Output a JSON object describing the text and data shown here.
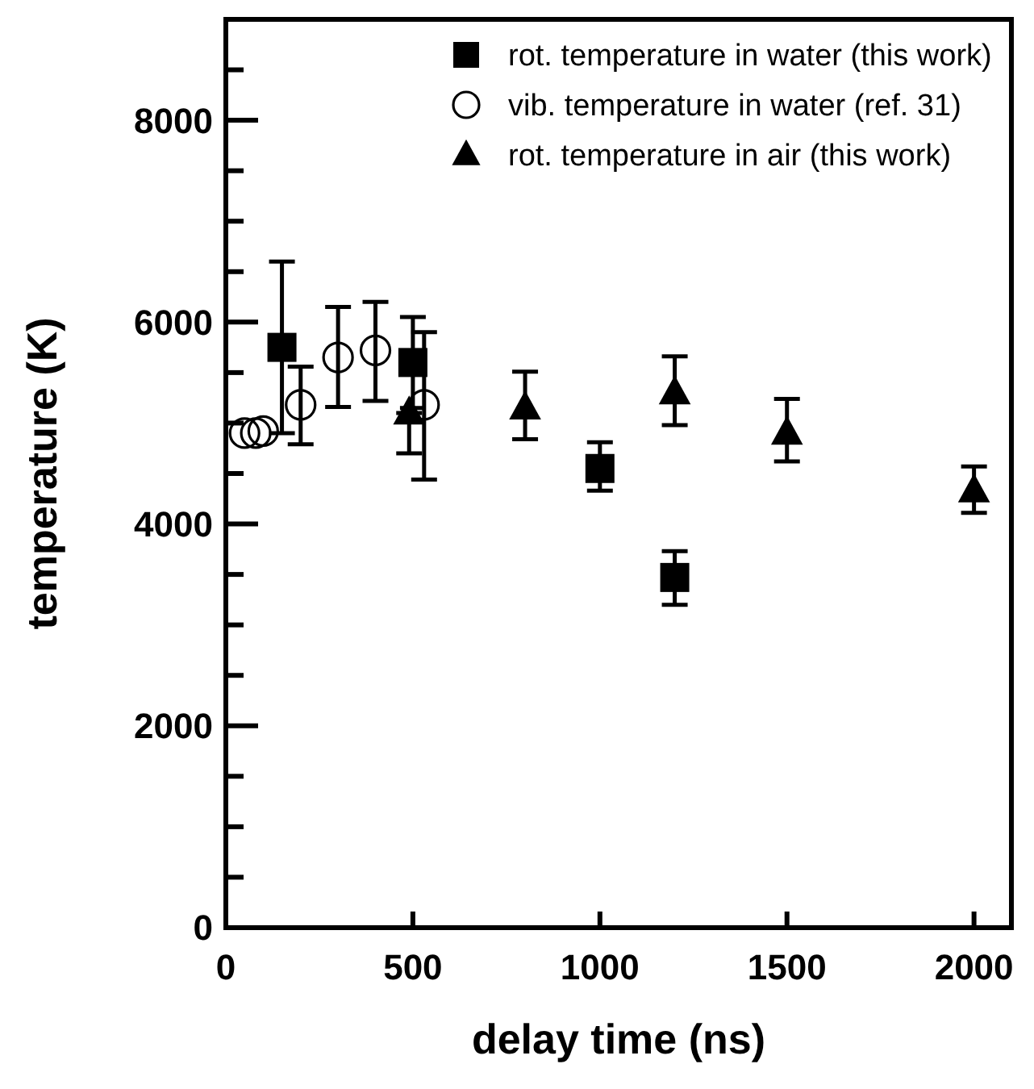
{
  "chart_data": {
    "type": "scatter",
    "xlabel": "delay time (ns)",
    "ylabel": "temperature (K)",
    "xlim": [
      0,
      2100
    ],
    "xticks": [
      0,
      500,
      1000,
      1500,
      2000
    ],
    "ylim": [
      0,
      9000
    ],
    "yticks": [
      0,
      {
        "value": 500,
        "label": null
      },
      {
        "value": 1000,
        "label": null
      },
      {
        "value": 1500,
        "label": null
      },
      2000,
      {
        "value": 2500,
        "label": null
      },
      {
        "value": 3000,
        "label": null
      },
      {
        "value": 3500,
        "label": null
      },
      4000,
      {
        "value": 4500,
        "label": null
      },
      {
        "value": 5000,
        "label": null
      },
      {
        "value": 5500,
        "label": null
      },
      6000,
      {
        "value": 6500,
        "label": null
      },
      {
        "value": 7000,
        "label": null
      },
      {
        "value": 7500,
        "label": null
      },
      8000,
      {
        "value": 8500,
        "label": null
      }
    ],
    "legend": "top right",
    "grid": false,
    "series": [
      {
        "name": "rot. temperature in water (this work)",
        "color": "#000000",
        "marker": "square",
        "x": [
          150,
          500,
          1000,
          1200
        ],
        "values": [
          5750,
          5600,
          4550,
          3470
        ],
        "errors": [
          [
            4900,
            6600
          ],
          [
            5150,
            6050
          ],
          [
            4330,
            4810
          ],
          [
            3200,
            3730
          ]
        ]
      },
      {
        "name": "vib. temperature in water (ref. 31)",
        "color": "#000000",
        "marker": "circle",
        "x": [
          50,
          80,
          100,
          200,
          300,
          400,
          530
        ],
        "values": [
          4900,
          4900,
          4920,
          5180,
          5650,
          5720,
          5180
        ],
        "errors": [
          null,
          null,
          null,
          [
            4790,
            5560
          ],
          [
            5160,
            6150
          ],
          [
            5220,
            6200
          ],
          [
            4440,
            5900
          ]
        ]
      },
      {
        "name": "rot. temperature in air (this work)",
        "color": "#000000",
        "marker": "triangle",
        "x": [
          490,
          800,
          1200,
          1500,
          2000
        ],
        "values": [
          5100,
          5150,
          5300,
          4900,
          4330
        ],
        "errors": [
          [
            4700,
            5100
          ],
          [
            4840,
            5510
          ],
          [
            4980,
            5660
          ],
          [
            4620,
            5240
          ],
          [
            4110,
            4570
          ]
        ]
      }
    ]
  }
}
